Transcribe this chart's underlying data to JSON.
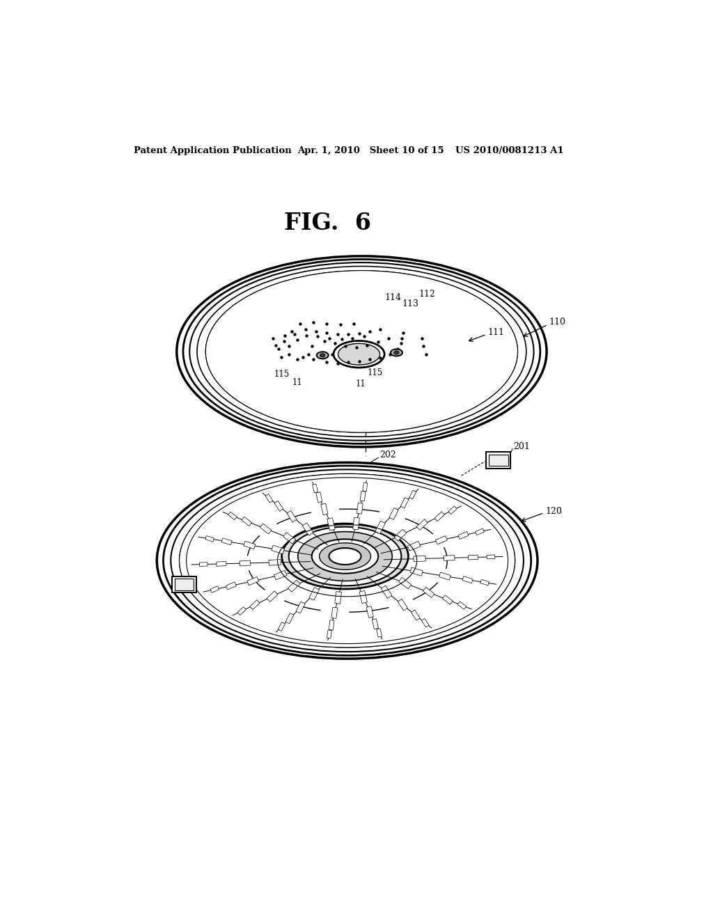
{
  "bg_color": "#ffffff",
  "header_left": "Patent Application Publication",
  "header_mid": "Apr. 1, 2010   Sheet 10 of 15",
  "header_right": "US 2010/0081213 A1",
  "fig_label": "FIG.  6"
}
